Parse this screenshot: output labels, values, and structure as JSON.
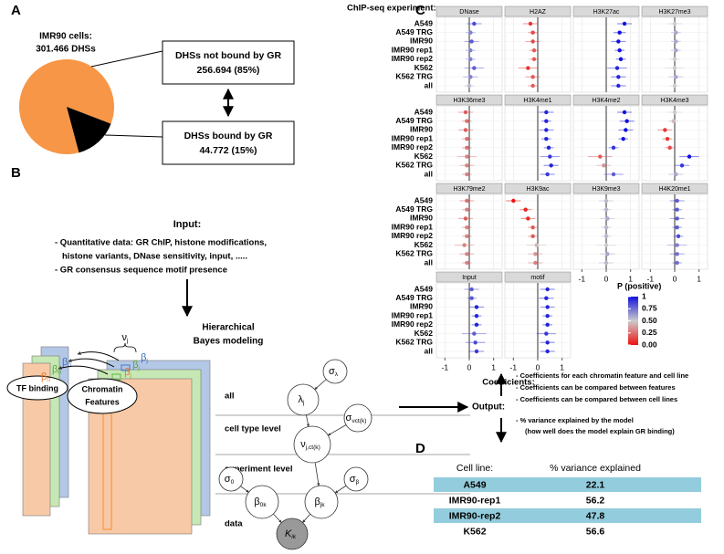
{
  "panel_labels": [
    "A",
    "B",
    "C",
    "D"
  ],
  "chart_data": [
    {
      "type": "pie",
      "title": "IMR90 cells:",
      "subtitle": "301.466 DHSs",
      "categories": [
        "DHSs not bound by GR",
        "DHSs bound by GR"
      ],
      "values": [
        85,
        15
      ],
      "value_labels": [
        "256.694 (85%)",
        "44.772 (15%)"
      ],
      "colors": [
        "#f79646",
        "#000000"
      ]
    },
    {
      "type": "dot",
      "y_label": "ChIP-seq experiment:",
      "x_label": "Coefficients:",
      "categories": [
        "A549",
        "A549 TRG",
        "IMR90",
        "IMR90 rep1",
        "IMR90 rep2",
        "K562",
        "K562 TRG",
        "all"
      ],
      "xlim": [
        -1.35,
        1.35
      ],
      "xticks": [
        -1,
        0,
        1
      ],
      "grid": true,
      "color_scale": {
        "title": "P (positive)",
        "low": "#ee1111",
        "mid": "#cccccc",
        "high": "#1111dd",
        "ticks": [
          {
            "value": 0,
            "label": "0.00"
          },
          {
            "value": 0.25,
            "label": "0.25"
          },
          {
            "value": 0.5,
            "label": "0.50"
          },
          {
            "value": 0.75,
            "label": "0.75"
          },
          1
        ]
      },
      "facets": [
        {
          "name": "DNase",
          "values": [
            0.2,
            0.05,
            0.1,
            0.05,
            0.05,
            0.2,
            0.05,
            0.0
          ],
          "errors": [
            0.3,
            0.2,
            0.3,
            0.2,
            0.2,
            0.4,
            0.3,
            0.2
          ],
          "p": [
            0.85,
            0.7,
            0.8,
            0.7,
            0.7,
            0.8,
            0.7,
            0.55
          ]
        },
        {
          "name": "H2AZ",
          "values": [
            -0.3,
            -0.2,
            -0.2,
            -0.15,
            -0.15,
            -0.4,
            -0.2,
            -0.2
          ],
          "errors": [
            0.3,
            0.2,
            0.3,
            0.2,
            0.2,
            0.4,
            0.3,
            0.2
          ],
          "p": [
            0.1,
            0.15,
            0.15,
            0.2,
            0.2,
            0.1,
            0.2,
            0.2
          ]
        },
        {
          "name": "H3K27ac",
          "values": [
            0.75,
            0.55,
            0.5,
            0.55,
            0.6,
            0.45,
            0.5,
            0.5
          ],
          "errors": [
            0.3,
            0.25,
            0.3,
            0.2,
            0.2,
            0.4,
            0.3,
            0.3
          ],
          "p": [
            1,
            1,
            1,
            1,
            1,
            0.95,
            0.95,
            0.95
          ]
        },
        {
          "name": "H3K27me3",
          "values": [
            0.0,
            0.05,
            0.05,
            0.05,
            0.0,
            0.0,
            0.05,
            0.0
          ],
          "errors": [
            0.3,
            0.2,
            0.2,
            0.2,
            0.2,
            0.4,
            0.3,
            0.2
          ],
          "p": [
            0.5,
            0.6,
            0.6,
            0.6,
            0.5,
            0.5,
            0.6,
            0.5
          ]
        },
        {
          "name": "H3K36me3",
          "values": [
            -0.15,
            -0.1,
            -0.15,
            -0.1,
            -0.1,
            -0.1,
            -0.1,
            -0.1
          ],
          "errors": [
            0.3,
            0.2,
            0.3,
            0.2,
            0.2,
            0.4,
            0.3,
            0.2
          ],
          "p": [
            0.2,
            0.25,
            0.2,
            0.25,
            0.25,
            0.3,
            0.3,
            0.3
          ]
        },
        {
          "name": "H3K4me1",
          "values": [
            0.35,
            0.35,
            0.35,
            0.35,
            0.45,
            0.5,
            0.55,
            0.4
          ],
          "errors": [
            0.3,
            0.2,
            0.3,
            0.2,
            0.2,
            0.4,
            0.3,
            0.3
          ],
          "p": [
            0.95,
            0.95,
            0.95,
            0.95,
            0.95,
            0.9,
            0.95,
            0.9
          ]
        },
        {
          "name": "H3K4me2",
          "values": [
            0.75,
            0.85,
            0.8,
            0.7,
            0.3,
            -0.25,
            -0.1,
            0.3
          ],
          "errors": [
            0.3,
            0.3,
            0.3,
            0.2,
            0.2,
            0.5,
            0.3,
            0.4
          ],
          "p": [
            1,
            1,
            1,
            1,
            0.9,
            0.2,
            0.35,
            0.8
          ]
        },
        {
          "name": "H3K4me3",
          "values": [
            0.0,
            -0.05,
            -0.4,
            -0.3,
            -0.2,
            0.6,
            0.3,
            0.05
          ],
          "errors": [
            0.3,
            0.2,
            0.3,
            0.2,
            0.2,
            0.4,
            0.3,
            0.3
          ],
          "p": [
            0.5,
            0.45,
            0.1,
            0.1,
            0.15,
            1,
            0.9,
            0.6
          ]
        },
        {
          "name": "H3K79me2",
          "values": [
            -0.1,
            -0.1,
            -0.15,
            -0.1,
            -0.1,
            -0.2,
            -0.1,
            -0.1
          ],
          "errors": [
            0.3,
            0.2,
            0.3,
            0.2,
            0.2,
            0.4,
            0.3,
            0.2
          ],
          "p": [
            0.25,
            0.3,
            0.2,
            0.3,
            0.3,
            0.3,
            0.3,
            0.3
          ]
        },
        {
          "name": "H3K9ac",
          "values": [
            -1.0,
            -0.5,
            -0.4,
            -0.2,
            -0.2,
            -0.05,
            -0.1,
            -0.1
          ],
          "errors": [
            0.3,
            0.25,
            0.3,
            0.2,
            0.2,
            0.4,
            0.3,
            0.3
          ],
          "p": [
            0,
            0.05,
            0.05,
            0.2,
            0.2,
            0.45,
            0.35,
            0.3
          ]
        },
        {
          "name": "H3K9me3",
          "values": [
            0.0,
            0.0,
            0.05,
            0.0,
            0.0,
            0.0,
            0.05,
            0.0
          ],
          "errors": [
            0.3,
            0.2,
            0.3,
            0.2,
            0.2,
            0.4,
            0.3,
            0.3
          ],
          "p": [
            0.55,
            0.55,
            0.6,
            0.55,
            0.55,
            0.5,
            0.6,
            0.55
          ]
        },
        {
          "name": "H4K20me1",
          "values": [
            0.1,
            0.1,
            0.1,
            0.1,
            0.15,
            0.1,
            0.1,
            0.1
          ],
          "errors": [
            0.3,
            0.2,
            0.3,
            0.2,
            0.2,
            0.4,
            0.3,
            0.2
          ],
          "p": [
            0.8,
            0.8,
            0.8,
            0.8,
            0.85,
            0.7,
            0.75,
            0.75
          ]
        },
        {
          "name": "Input",
          "values": [
            0.1,
            0.1,
            0.3,
            0.3,
            0.3,
            0.2,
            0.25,
            0.3
          ],
          "errors": [
            0.3,
            0.2,
            0.3,
            0.2,
            0.2,
            0.5,
            0.4,
            0.3
          ],
          "p": [
            0.8,
            0.8,
            0.95,
            0.95,
            0.95,
            0.8,
            0.85,
            0.9
          ]
        },
        {
          "name": "motif",
          "values": [
            0.4,
            0.35,
            0.4,
            0.4,
            0.4,
            0.35,
            0.4,
            0.4
          ],
          "errors": [
            0.3,
            0.3,
            0.3,
            0.2,
            0.2,
            0.4,
            0.3,
            0.3
          ],
          "p": [
            0.95,
            0.95,
            0.95,
            0.95,
            0.95,
            0.9,
            0.95,
            0.95
          ]
        }
      ]
    }
  ],
  "input": {
    "title": "Input:",
    "items": [
      "- Quantitative data: GR ChIP, histone modifications,",
      "histone variants, DNase sensitivity, input, .....",
      "- GR consensus sequence motif presence"
    ]
  },
  "model": {
    "title_lines": [
      "Hierarchical",
      "Bayes modeling"
    ],
    "stacks": [
      [
        "TF binding"
      ],
      [
        "Chromatin",
        "Features"
      ]
    ],
    "levels": [
      "all",
      "cell type level",
      "experiment level",
      "data"
    ],
    "nodes": [
      {
        "symbol": "σ",
        "sub": "λ"
      },
      {
        "symbol": "λ",
        "sub": "j"
      },
      {
        "symbol": "σ",
        "sub": "νct(k)"
      },
      {
        "symbol": "ν",
        "sub": "j,ct(k)"
      },
      {
        "symbol": "σ",
        "sub": "0"
      },
      {
        "symbol": "β",
        "sub": "0k"
      },
      {
        "symbol": "β",
        "sub": "jk"
      },
      {
        "symbol": "σ",
        "sub": "β"
      },
      {
        "symbol": "K",
        "sub": "ik"
      }
    ],
    "coef_labels": [
      {
        "symbol": "ν",
        "sub": "j"
      },
      {
        "symbol": "β",
        "sub": "j"
      },
      {
        "symbol": "β",
        "sub": "j"
      },
      {
        "symbol": "β",
        "sub": "j"
      },
      {
        "symbol": "β",
        "sub": "0"
      },
      {
        "symbol": "β",
        "sub": "0"
      },
      {
        "symbol": "β",
        "sub": "0"
      }
    ]
  },
  "output": {
    "title": "Output:",
    "items": [
      "- Coefficients for each chromatin feature and cell line",
      "- Coefficients can be compared between features",
      "- Coefficients can be compared between cell lines",
      "- % variance explained by the model",
      "(how well does the model explain GR binding)"
    ]
  },
  "table": {
    "header": [
      "Cell line:",
      "% variance explained"
    ],
    "rows": [
      [
        "A549",
        "22.1"
      ],
      [
        "IMR90-rep1",
        "56.2"
      ],
      [
        "IMR90-rep2",
        "47.8"
      ],
      [
        "K562",
        "56.6"
      ]
    ]
  }
}
